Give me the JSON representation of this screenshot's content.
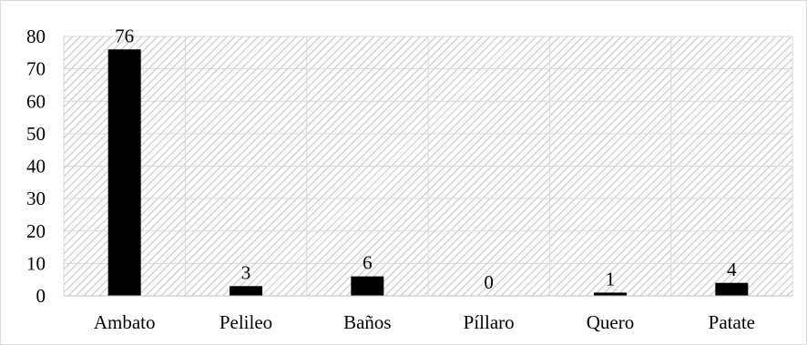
{
  "chart_data": {
    "type": "bar",
    "categories": [
      "Ambato",
      "Pelileo",
      "Baños",
      "Píllaro",
      "Quero",
      "Patate"
    ],
    "values": [
      76,
      3,
      6,
      0,
      1,
      4
    ],
    "data_labels": [
      "76",
      "3",
      "6",
      "0",
      "1",
      "4"
    ],
    "title": "",
    "xlabel": "",
    "ylabel": "",
    "ylim": [
      0,
      80
    ],
    "yticks": [
      0,
      10,
      20,
      30,
      40,
      50,
      60,
      70,
      80
    ],
    "grid": true,
    "bar_color": "#000000",
    "plot_pattern": "diagonal-hatch",
    "grid_color": "#d9d9d9",
    "legend": "none"
  }
}
